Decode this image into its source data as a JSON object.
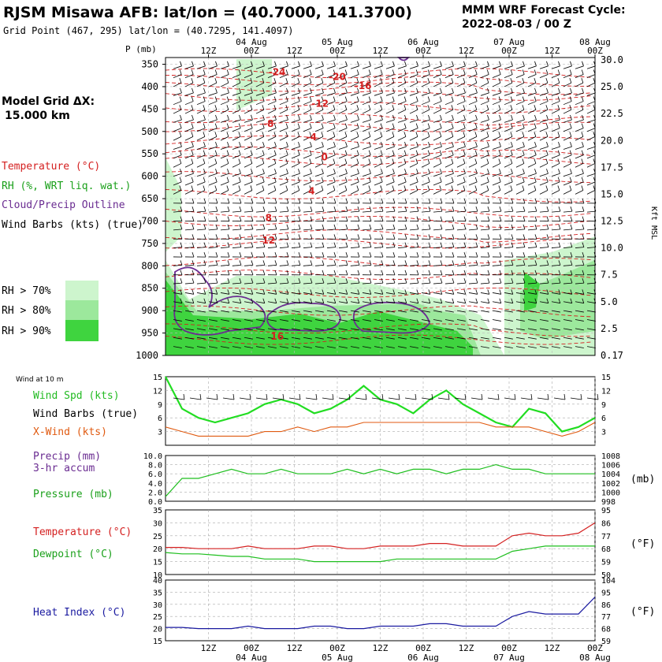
{
  "header": {
    "title": "RJSM Misawa AFB:  lat/lon = (40.7000, 141.3700)",
    "subtitle": "Grid Point (467, 295) lat/lon = (40.7295, 141.4097)",
    "forecast_label": "MMM WRF Forecast Cycle:",
    "cycle": "2022-08-03 / 00  Z"
  },
  "legend": {
    "grid_label": "Model Grid ΔX:",
    "grid_value": "15.000 km",
    "temperature": "Temperature (°C)",
    "rh": "RH (%, WRT liq. wat.)",
    "cloud": "Cloud/Precip Outline",
    "wind_barbs": "Wind Barbs (kts) (true)",
    "rh_70": "RH > 70%",
    "rh_80": "RH > 80%",
    "rh_90": "RH > 90%",
    "wind_10m": "Wind at 10 m",
    "wind_spd": "Wind Spd (kts)",
    "wind_barbs_sfc": "Wind Barbs (true)",
    "xwind": "X-Wind (kts)",
    "precip": "Precip (mm)",
    "precip2": "3-hr accum",
    "pressure": "Pressure (mb)",
    "temp_sfc": "Temperature (°C)",
    "dewpoint": "Dewpoint (°C)",
    "heat_index": "Heat Index (°C)",
    "mb_unit": "(mb)",
    "f_unit": "(°F)",
    "f_unit2": "(°F)"
  },
  "colors": {
    "temperature": "#d42020",
    "rh": "#1fbf1f",
    "cloud": "#6a2c91",
    "wind_spd": "#22dd22",
    "xwind": "#e05a10",
    "heat_index": "#1a1aa0",
    "rh70": "#cdf5cd",
    "rh80": "#9ce89c",
    "rh90": "#3fd43f"
  },
  "chart_data": [
    {
      "type": "line",
      "name": "cross-section",
      "p_label": "P (mb)",
      "height_label": "Kft MSL",
      "x_ticks": [
        "12Z",
        "00Z",
        "12Z",
        "00Z",
        "12Z",
        "00Z",
        "12Z",
        "00Z",
        "12Z",
        "00Z"
      ],
      "x_dates": [
        "04 Aug",
        "05 Aug",
        "06 Aug",
        "07 Aug",
        "08 Aug"
      ],
      "p_ticks": [
        "350",
        "400",
        "450",
        "500",
        "550",
        "600",
        "650",
        "700",
        "750",
        "800",
        "850",
        "900",
        "950",
        "1000"
      ],
      "kft_ticks": [
        "30.0",
        "25.0",
        "22.5",
        "20.0",
        "17.5",
        "15.0",
        "12.5",
        "10.0",
        "7.5",
        "5.0",
        "2.5",
        "0.17"
      ],
      "temp_labels": [
        {
          "t": -24,
          "x": 0.8,
          "p": 375
        },
        {
          "t": -20,
          "x": 1.5,
          "p": 385
        },
        {
          "t": -16,
          "x": 1.8,
          "p": 405
        },
        {
          "t": -12,
          "x": 1.3,
          "p": 445
        },
        {
          "t": -8,
          "x": 0.7,
          "p": 490
        },
        {
          "t": -4,
          "x": 1.2,
          "p": 520
        },
        {
          "t": 0,
          "x": 1.35,
          "p": 565
        },
        {
          "t": 4,
          "x": 1.2,
          "p": 640
        },
        {
          "t": 8,
          "x": 0.7,
          "p": 700
        },
        {
          "t": 12,
          "x": 0.7,
          "p": 750
        },
        {
          "t": 16,
          "x": 0.8,
          "p": 965
        }
      ]
    },
    {
      "type": "line",
      "name": "wind",
      "yticks": [
        "15",
        "12",
        "9",
        "6",
        "3"
      ],
      "wind_speed": [
        15,
        8,
        6,
        5,
        6,
        7,
        9,
        10,
        9,
        7,
        8,
        10,
        13,
        10,
        9,
        7,
        10,
        12,
        9,
        7,
        5,
        4,
        8,
        7,
        3,
        4,
        6
      ],
      "xwind": [
        4,
        3,
        2,
        2,
        2,
        2,
        3,
        3,
        4,
        3,
        4,
        4,
        5,
        5,
        5,
        5,
        5,
        5,
        5,
        5,
        4,
        4,
        4,
        3,
        2,
        3,
        5
      ]
    },
    {
      "type": "line",
      "name": "pressure",
      "yticks_left": [
        "10.0",
        "8.0",
        "6.0",
        "4.0",
        "2.0",
        "0.0"
      ],
      "yticks_right": [
        "1008",
        "1006",
        "1004",
        "1002",
        "1000",
        "998"
      ],
      "pressure": [
        999,
        1003,
        1003,
        1004,
        1005,
        1004,
        1004,
        1005,
        1004,
        1004,
        1004,
        1005,
        1004,
        1005,
        1004,
        1005,
        1005,
        1004,
        1005,
        1005,
        1006,
        1005,
        1005,
        1004,
        1004,
        1004,
        1004
      ]
    },
    {
      "type": "line",
      "name": "temperature",
      "yticks_left": [
        "35",
        "30",
        "25",
        "20",
        "15",
        "10"
      ],
      "yticks_right": [
        "95",
        "86",
        "77",
        "68",
        "59",
        "50"
      ],
      "temperature": [
        20.5,
        20.5,
        20,
        20,
        20,
        21,
        20,
        20,
        20,
        21,
        21,
        20,
        20,
        21,
        21,
        21,
        22,
        22,
        21,
        21,
        21,
        25,
        26,
        25,
        25,
        26,
        30
      ],
      "dewpoint": [
        18.5,
        18,
        18,
        17.5,
        17,
        17,
        16,
        16,
        16,
        15,
        15,
        15,
        15,
        15,
        16,
        16,
        16,
        16,
        16,
        16,
        16,
        19,
        20,
        21,
        21,
        21,
        21
      ]
    },
    {
      "type": "line",
      "name": "heat_index",
      "yticks_left": [
        "40",
        "35",
        "30",
        "25",
        "20",
        "15"
      ],
      "yticks_right": [
        "104",
        "95",
        "86",
        "77",
        "68",
        "59"
      ],
      "heat_index": [
        20.5,
        20.5,
        20,
        20,
        20,
        21,
        20,
        20,
        20,
        21,
        21,
        20,
        20,
        21,
        21,
        21,
        22,
        22,
        21,
        21,
        21,
        25,
        27,
        26,
        26,
        26,
        33
      ]
    }
  ]
}
